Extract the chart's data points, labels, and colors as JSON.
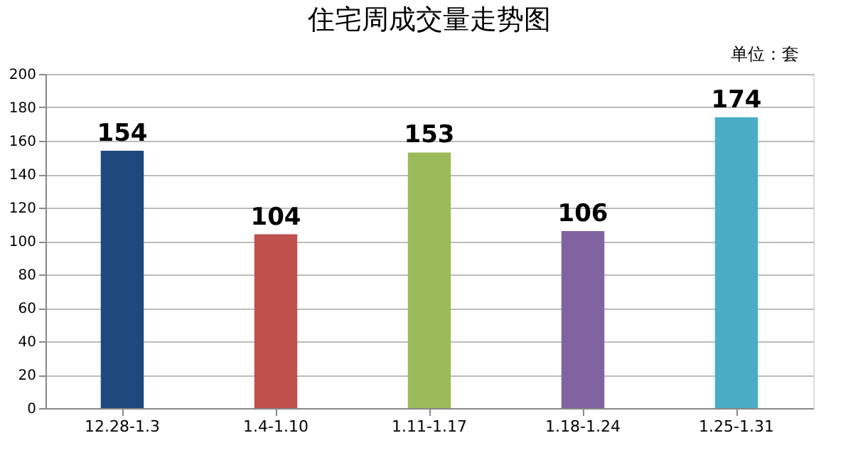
{
  "chart_data": {
    "type": "bar",
    "title": "住宅周成交量走势图",
    "annotations": [
      "单位：套"
    ],
    "categories": [
      "12.28-1.3",
      "1.4-1.10",
      "1.11-1.17",
      "1.18-1.24",
      "1.25-1.31"
    ],
    "values": [
      154,
      104,
      153,
      106,
      174
    ],
    "colors": [
      "#1f497d",
      "#c0504d",
      "#9bbb59",
      "#8064a2",
      "#4bacc6"
    ],
    "ylim": [
      0,
      200
    ],
    "yticks": [
      0,
      20,
      40,
      60,
      80,
      100,
      120,
      140,
      160,
      180,
      200
    ],
    "grid": "y",
    "data_labels": true
  }
}
